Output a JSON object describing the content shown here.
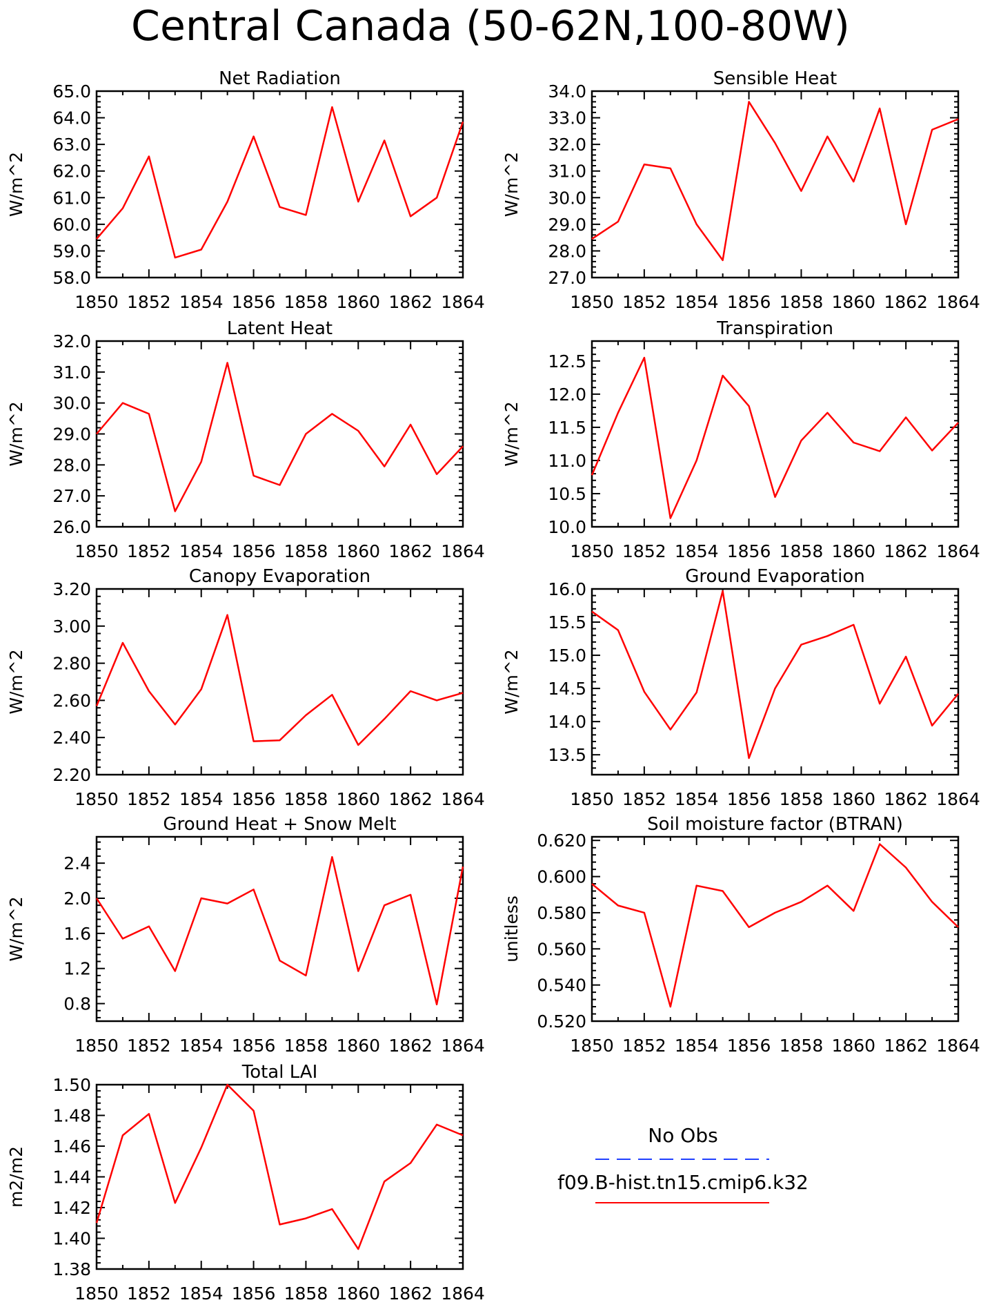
{
  "figure_title": "Central Canada (50-62N,100-80W)",
  "legend": {
    "entries": [
      {
        "label": "No Obs",
        "color": "#1f3fff",
        "style": "dashed"
      },
      {
        "label": "f09.B-hist.tn15.cmip6.k32",
        "color": "#ff0000",
        "style": "solid"
      }
    ]
  },
  "chart_data": [
    {
      "type": "line",
      "title": "Net Radiation",
      "ylabel": "W/m^2",
      "x": [
        1850,
        1851,
        1852,
        1853,
        1854,
        1855,
        1856,
        1857,
        1858,
        1859,
        1860,
        1861,
        1862,
        1863,
        1864
      ],
      "series": [
        {
          "name": "f09.B-hist.tn15.cmip6.k32",
          "color": "#ff0000",
          "values": [
            59.45,
            60.6,
            62.55,
            58.75,
            59.05,
            60.85,
            63.3,
            60.65,
            60.35,
            64.4,
            60.85,
            63.15,
            60.3,
            61.0,
            63.85
          ]
        }
      ],
      "xlim": [
        1850,
        1864
      ],
      "ylim": [
        58.0,
        65.0
      ],
      "xticks": [
        "1850",
        "1852",
        "1854",
        "1856",
        "1858",
        "1860",
        "1862",
        "1864"
      ],
      "yticks": [
        "58.0",
        "59.0",
        "60.0",
        "61.0",
        "62.0",
        "63.0",
        "64.0",
        "65.0"
      ]
    },
    {
      "type": "line",
      "title": "Sensible Heat",
      "ylabel": "W/m^2",
      "x": [
        1850,
        1851,
        1852,
        1853,
        1854,
        1855,
        1856,
        1857,
        1858,
        1859,
        1860,
        1861,
        1862,
        1863,
        1864
      ],
      "series": [
        {
          "name": "f09.B-hist.tn15.cmip6.k32",
          "color": "#ff0000",
          "values": [
            28.45,
            29.1,
            31.25,
            31.1,
            29.0,
            27.65,
            33.6,
            32.05,
            30.25,
            32.3,
            30.6,
            33.35,
            29.0,
            32.55,
            32.95
          ]
        }
      ],
      "xlim": [
        1850,
        1864
      ],
      "ylim": [
        27.0,
        34.0
      ],
      "xticks": [
        "1850",
        "1852",
        "1854",
        "1856",
        "1858",
        "1860",
        "1862",
        "1864"
      ],
      "yticks": [
        "27.0",
        "28.0",
        "29.0",
        "30.0",
        "31.0",
        "32.0",
        "33.0",
        "34.0"
      ]
    },
    {
      "type": "line",
      "title": "Latent Heat",
      "ylabel": "W/m^2",
      "x": [
        1850,
        1851,
        1852,
        1853,
        1854,
        1855,
        1856,
        1857,
        1858,
        1859,
        1860,
        1861,
        1862,
        1863,
        1864
      ],
      "series": [
        {
          "name": "f09.B-hist.tn15.cmip6.k32",
          "color": "#ff0000",
          "values": [
            29.0,
            30.0,
            29.65,
            26.5,
            28.1,
            31.3,
            27.65,
            27.35,
            29.0,
            29.65,
            29.1,
            27.95,
            29.3,
            27.7,
            28.6
          ]
        }
      ],
      "xlim": [
        1850,
        1864
      ],
      "ylim": [
        26.0,
        32.0
      ],
      "xticks": [
        "1850",
        "1852",
        "1854",
        "1856",
        "1858",
        "1860",
        "1862",
        "1864"
      ],
      "yticks": [
        "26.0",
        "27.0",
        "28.0",
        "29.0",
        "30.0",
        "31.0",
        "32.0"
      ]
    },
    {
      "type": "line",
      "title": "Transpiration",
      "ylabel": "W/m^2",
      "x": [
        1850,
        1851,
        1852,
        1853,
        1854,
        1855,
        1856,
        1857,
        1858,
        1859,
        1860,
        1861,
        1862,
        1863,
        1864
      ],
      "series": [
        {
          "name": "f09.B-hist.tn15.cmip6.k32",
          "color": "#ff0000",
          "values": [
            10.78,
            11.72,
            12.55,
            10.13,
            11.0,
            12.28,
            11.82,
            10.45,
            11.3,
            11.72,
            11.27,
            11.14,
            11.65,
            11.15,
            11.57
          ]
        }
      ],
      "xlim": [
        1850,
        1864
      ],
      "ylim": [
        10.0,
        12.8
      ],
      "xticks": [
        "1850",
        "1852",
        "1854",
        "1856",
        "1858",
        "1860",
        "1862",
        "1864"
      ],
      "yticks": [
        "10.0",
        "10.5",
        "11.0",
        "11.5",
        "12.0",
        "12.5"
      ]
    },
    {
      "type": "line",
      "title": "Canopy Evaporation",
      "ylabel": "W/m^2",
      "x": [
        1850,
        1851,
        1852,
        1853,
        1854,
        1855,
        1856,
        1857,
        1858,
        1859,
        1860,
        1861,
        1862,
        1863,
        1864
      ],
      "series": [
        {
          "name": "f09.B-hist.tn15.cmip6.k32",
          "color": "#ff0000",
          "values": [
            2.57,
            2.91,
            2.65,
            2.47,
            2.66,
            3.06,
            2.38,
            2.385,
            2.52,
            2.63,
            2.36,
            2.5,
            2.65,
            2.6,
            2.64
          ]
        }
      ],
      "xlim": [
        1850,
        1864
      ],
      "ylim": [
        2.2,
        3.2
      ],
      "xticks": [
        "1850",
        "1852",
        "1854",
        "1856",
        "1858",
        "1860",
        "1862",
        "1864"
      ],
      "yticks": [
        "2.20",
        "2.40",
        "2.60",
        "2.80",
        "3.00",
        "3.20"
      ]
    },
    {
      "type": "line",
      "title": "Ground Evaporation",
      "ylabel": "W/m^2",
      "x": [
        1850,
        1851,
        1852,
        1853,
        1854,
        1855,
        1856,
        1857,
        1858,
        1859,
        1860,
        1861,
        1862,
        1863,
        1864
      ],
      "series": [
        {
          "name": "f09.B-hist.tn15.cmip6.k32",
          "color": "#ff0000",
          "values": [
            15.66,
            15.38,
            14.45,
            13.88,
            14.44,
            15.97,
            13.45,
            14.5,
            15.16,
            15.29,
            15.46,
            14.27,
            14.98,
            13.94,
            14.42
          ]
        }
      ],
      "xlim": [
        1850,
        1864
      ],
      "ylim": [
        13.2,
        16.0
      ],
      "xticks": [
        "1850",
        "1852",
        "1854",
        "1856",
        "1858",
        "1860",
        "1862",
        "1864"
      ],
      "yticks": [
        "13.5",
        "14.0",
        "14.5",
        "15.0",
        "15.5",
        "16.0"
      ]
    },
    {
      "type": "line",
      "title": "Ground Heat + Snow Melt",
      "ylabel": "W/m^2",
      "x": [
        1850,
        1851,
        1852,
        1853,
        1854,
        1855,
        1856,
        1857,
        1858,
        1859,
        1860,
        1861,
        1862,
        1863,
        1864
      ],
      "series": [
        {
          "name": "f09.B-hist.tn15.cmip6.k32",
          "color": "#ff0000",
          "values": [
            2.0,
            1.54,
            1.68,
            1.17,
            2.0,
            1.94,
            2.1,
            1.29,
            1.12,
            2.47,
            1.17,
            1.92,
            2.04,
            0.79,
            2.36
          ]
        }
      ],
      "xlim": [
        1850,
        1864
      ],
      "ylim": [
        0.6,
        2.7
      ],
      "xticks": [
        "1850",
        "1852",
        "1854",
        "1856",
        "1858",
        "1860",
        "1862",
        "1864"
      ],
      "yticks": [
        "0.8",
        "1.2",
        "1.6",
        "2.0",
        "2.4"
      ]
    },
    {
      "type": "line",
      "title": "Soil moisture factor (BTRAN)",
      "ylabel": "unitless",
      "x": [
        1850,
        1851,
        1852,
        1853,
        1854,
        1855,
        1856,
        1857,
        1858,
        1859,
        1860,
        1861,
        1862,
        1863,
        1864
      ],
      "series": [
        {
          "name": "f09.B-hist.tn15.cmip6.k32",
          "color": "#ff0000",
          "values": [
            0.596,
            0.584,
            0.58,
            0.528,
            0.595,
            0.592,
            0.572,
            0.58,
            0.586,
            0.595,
            0.581,
            0.618,
            0.605,
            0.586,
            0.572
          ]
        }
      ],
      "xlim": [
        1850,
        1864
      ],
      "ylim": [
        0.52,
        0.622
      ],
      "xticks": [
        "1850",
        "1852",
        "1854",
        "1856",
        "1858",
        "1860",
        "1862",
        "1864"
      ],
      "yticks": [
        "0.520",
        "0.540",
        "0.560",
        "0.580",
        "0.600",
        "0.620"
      ]
    },
    {
      "type": "line",
      "title": "Total LAI",
      "ylabel": "m2/m2",
      "x": [
        1850,
        1851,
        1852,
        1853,
        1854,
        1855,
        1856,
        1857,
        1858,
        1859,
        1860,
        1861,
        1862,
        1863,
        1864
      ],
      "series": [
        {
          "name": "f09.B-hist.tn15.cmip6.k32",
          "color": "#ff0000",
          "values": [
            1.41,
            1.467,
            1.481,
            1.423,
            1.459,
            1.5,
            1.483,
            1.409,
            1.413,
            1.419,
            1.393,
            1.437,
            1.449,
            1.474,
            1.467
          ]
        }
      ],
      "xlim": [
        1850,
        1864
      ],
      "ylim": [
        1.38,
        1.5
      ],
      "xticks": [
        "1850",
        "1852",
        "1854",
        "1856",
        "1858",
        "1860",
        "1862",
        "1864"
      ],
      "yticks": [
        "1.38",
        "1.40",
        "1.42",
        "1.44",
        "1.46",
        "1.48",
        "1.50"
      ]
    }
  ]
}
